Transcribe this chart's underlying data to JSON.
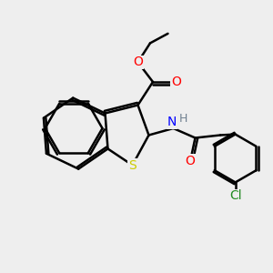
{
  "background_color": "#eeeeee",
  "atom_colors": {
    "O": "#ff0000",
    "S": "#cccc00",
    "N": "#0000ff",
    "H": "#708090",
    "Cl": "#228b22",
    "C": "#000000"
  },
  "bond_color": "#000000",
  "bond_width": 1.8,
  "font_size": 10,
  "fig_size": [
    3.0,
    3.0
  ],
  "dpi": 100,
  "xlim": [
    0,
    10
  ],
  "ylim": [
    0,
    10
  ]
}
